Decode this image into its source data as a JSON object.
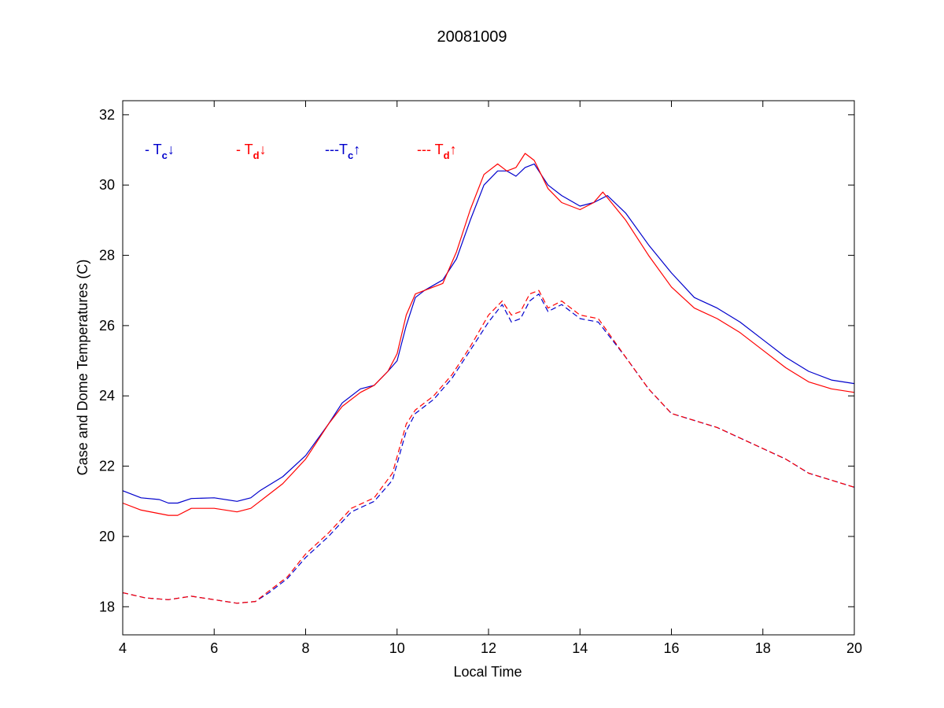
{
  "chart_data": {
    "type": "line",
    "title": "20081009",
    "xlabel": "Local Time",
    "ylabel": "Case and Dome Temperatures (C)",
    "xlim": [
      4,
      20
    ],
    "ylim": [
      17.2,
      32.4
    ],
    "xticks": [
      4,
      6,
      8,
      10,
      12,
      14,
      16,
      18,
      20
    ],
    "yticks": [
      18,
      20,
      22,
      24,
      26,
      28,
      30,
      32
    ],
    "grid": false,
    "legend_position": "top-left",
    "series": [
      {
        "name": "- Tc↓",
        "legend_prefix": "- T",
        "legend_sub": "c",
        "legend_arrow": "↓",
        "color": "#0000cc",
        "dash": "solid",
        "points": [
          [
            4.0,
            21.3
          ],
          [
            4.4,
            21.1
          ],
          [
            4.8,
            21.05
          ],
          [
            5.0,
            20.95
          ],
          [
            5.2,
            20.95
          ],
          [
            5.5,
            21.08
          ],
          [
            6.0,
            21.1
          ],
          [
            6.5,
            21.0
          ],
          [
            6.8,
            21.1
          ],
          [
            7.0,
            21.3
          ],
          [
            7.5,
            21.7
          ],
          [
            8.0,
            22.3
          ],
          [
            8.5,
            23.2
          ],
          [
            8.8,
            23.8
          ],
          [
            9.2,
            24.2
          ],
          [
            9.5,
            24.3
          ],
          [
            9.8,
            24.7
          ],
          [
            10.0,
            25.0
          ],
          [
            10.2,
            26.0
          ],
          [
            10.4,
            26.8
          ],
          [
            10.6,
            27.0
          ],
          [
            11.0,
            27.3
          ],
          [
            11.3,
            27.9
          ],
          [
            11.6,
            29.0
          ],
          [
            11.9,
            30.0
          ],
          [
            12.2,
            30.4
          ],
          [
            12.4,
            30.4
          ],
          [
            12.6,
            30.25
          ],
          [
            12.8,
            30.5
          ],
          [
            13.0,
            30.6
          ],
          [
            13.3,
            30.0
          ],
          [
            13.6,
            29.7
          ],
          [
            14.0,
            29.4
          ],
          [
            14.3,
            29.5
          ],
          [
            14.6,
            29.7
          ],
          [
            15.0,
            29.2
          ],
          [
            15.5,
            28.3
          ],
          [
            16.0,
            27.5
          ],
          [
            16.5,
            26.8
          ],
          [
            17.0,
            26.5
          ],
          [
            17.5,
            26.1
          ],
          [
            18.0,
            25.6
          ],
          [
            18.5,
            25.1
          ],
          [
            19.0,
            24.7
          ],
          [
            19.5,
            24.45
          ],
          [
            20.0,
            24.35
          ]
        ]
      },
      {
        "name": "- Td↓",
        "legend_prefix": "- T",
        "legend_sub": "d",
        "legend_arrow": "↓",
        "color": "#ff0000",
        "dash": "solid",
        "points": [
          [
            4.0,
            20.95
          ],
          [
            4.4,
            20.75
          ],
          [
            4.8,
            20.65
          ],
          [
            5.0,
            20.6
          ],
          [
            5.2,
            20.6
          ],
          [
            5.5,
            20.8
          ],
          [
            6.0,
            20.8
          ],
          [
            6.5,
            20.7
          ],
          [
            6.8,
            20.8
          ],
          [
            7.0,
            21.0
          ],
          [
            7.5,
            21.5
          ],
          [
            8.0,
            22.2
          ],
          [
            8.5,
            23.2
          ],
          [
            8.8,
            23.7
          ],
          [
            9.2,
            24.1
          ],
          [
            9.5,
            24.3
          ],
          [
            9.8,
            24.7
          ],
          [
            10.0,
            25.2
          ],
          [
            10.2,
            26.3
          ],
          [
            10.4,
            26.9
          ],
          [
            10.6,
            27.0
          ],
          [
            11.0,
            27.2
          ],
          [
            11.3,
            28.1
          ],
          [
            11.6,
            29.3
          ],
          [
            11.9,
            30.3
          ],
          [
            12.2,
            30.6
          ],
          [
            12.4,
            30.4
          ],
          [
            12.6,
            30.5
          ],
          [
            12.8,
            30.9
          ],
          [
            13.0,
            30.7
          ],
          [
            13.3,
            29.9
          ],
          [
            13.6,
            29.5
          ],
          [
            14.0,
            29.3
          ],
          [
            14.3,
            29.5
          ],
          [
            14.5,
            29.8
          ],
          [
            15.0,
            29.0
          ],
          [
            15.5,
            28.0
          ],
          [
            16.0,
            27.1
          ],
          [
            16.5,
            26.5
          ],
          [
            17.0,
            26.2
          ],
          [
            17.5,
            25.8
          ],
          [
            18.0,
            25.3
          ],
          [
            18.5,
            24.8
          ],
          [
            19.0,
            24.4
          ],
          [
            19.5,
            24.2
          ],
          [
            20.0,
            24.1
          ]
        ]
      },
      {
        "name": "---Tc↑",
        "legend_prefix": "---T",
        "legend_sub": "c",
        "legend_arrow": "↑",
        "color": "#0000cc",
        "dash": "dashed",
        "points": [
          [
            4.0,
            18.4
          ],
          [
            4.5,
            18.25
          ],
          [
            5.0,
            18.2
          ],
          [
            5.5,
            18.3
          ],
          [
            6.0,
            18.2
          ],
          [
            6.5,
            18.1
          ],
          [
            6.9,
            18.15
          ],
          [
            7.2,
            18.4
          ],
          [
            7.6,
            18.8
          ],
          [
            8.0,
            19.4
          ],
          [
            8.5,
            20.0
          ],
          [
            9.0,
            20.7
          ],
          [
            9.5,
            21.0
          ],
          [
            9.9,
            21.6
          ],
          [
            10.2,
            23.0
          ],
          [
            10.4,
            23.5
          ],
          [
            10.8,
            23.9
          ],
          [
            11.2,
            24.5
          ],
          [
            11.6,
            25.3
          ],
          [
            12.0,
            26.1
          ],
          [
            12.3,
            26.6
          ],
          [
            12.5,
            26.1
          ],
          [
            12.7,
            26.2
          ],
          [
            12.9,
            26.7
          ],
          [
            13.1,
            26.9
          ],
          [
            13.3,
            26.4
          ],
          [
            13.6,
            26.6
          ],
          [
            14.0,
            26.2
          ],
          [
            14.4,
            26.1
          ],
          [
            15.0,
            25.1
          ],
          [
            15.5,
            24.2
          ],
          [
            16.0,
            23.5
          ],
          [
            16.5,
            23.3
          ],
          [
            17.0,
            23.1
          ],
          [
            17.5,
            22.8
          ],
          [
            18.0,
            22.5
          ],
          [
            18.5,
            22.2
          ],
          [
            19.0,
            21.8
          ],
          [
            19.5,
            21.6
          ],
          [
            20.0,
            21.4
          ]
        ]
      },
      {
        "name": "--- Td↑",
        "legend_prefix": "--- T",
        "legend_sub": "d",
        "legend_arrow": "↑",
        "color": "#ff0000",
        "dash": "dashed",
        "points": [
          [
            4.0,
            18.4
          ],
          [
            4.5,
            18.25
          ],
          [
            5.0,
            18.2
          ],
          [
            5.5,
            18.3
          ],
          [
            6.0,
            18.2
          ],
          [
            6.5,
            18.1
          ],
          [
            6.9,
            18.15
          ],
          [
            7.2,
            18.45
          ],
          [
            7.6,
            18.85
          ],
          [
            8.0,
            19.5
          ],
          [
            8.5,
            20.1
          ],
          [
            9.0,
            20.8
          ],
          [
            9.5,
            21.1
          ],
          [
            9.9,
            21.8
          ],
          [
            10.2,
            23.2
          ],
          [
            10.4,
            23.6
          ],
          [
            10.8,
            24.0
          ],
          [
            11.2,
            24.6
          ],
          [
            11.6,
            25.4
          ],
          [
            12.0,
            26.3
          ],
          [
            12.3,
            26.7
          ],
          [
            12.5,
            26.3
          ],
          [
            12.7,
            26.4
          ],
          [
            12.9,
            26.9
          ],
          [
            13.1,
            27.0
          ],
          [
            13.3,
            26.5
          ],
          [
            13.6,
            26.7
          ],
          [
            14.0,
            26.3
          ],
          [
            14.4,
            26.2
          ],
          [
            15.0,
            25.1
          ],
          [
            15.5,
            24.2
          ],
          [
            16.0,
            23.5
          ],
          [
            16.5,
            23.3
          ],
          [
            17.0,
            23.1
          ],
          [
            17.5,
            22.8
          ],
          [
            18.0,
            22.5
          ],
          [
            18.5,
            22.2
          ],
          [
            19.0,
            21.8
          ],
          [
            19.5,
            21.6
          ],
          [
            20.0,
            21.4
          ]
        ]
      }
    ]
  }
}
